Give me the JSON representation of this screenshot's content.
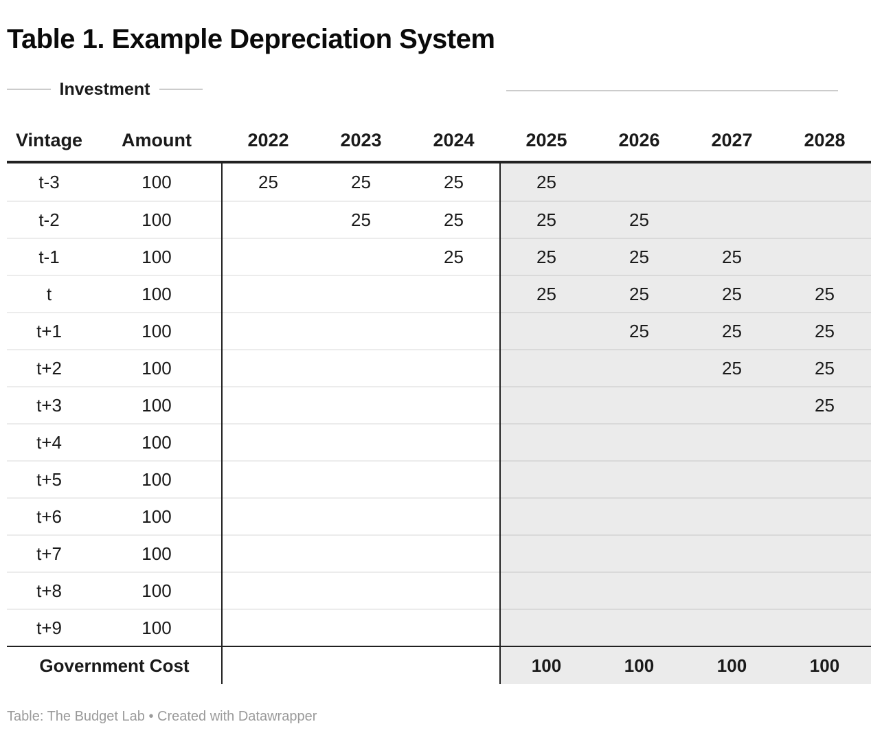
{
  "title": "Table 1. Example Depreciation System",
  "attribution": "Table: The Budget Lab • Created with Datawrapper",
  "colors": {
    "highlight_column_bg": "#ebebeb",
    "rule_dark": "#212121",
    "separator_plain": "#ececec",
    "separator_shaded": "#d9d9d9",
    "group_line": "#cccccc",
    "attribution_text": "#9a9a9a"
  },
  "chart_data": {
    "type": "table",
    "title": "Table 1. Example Depreciation System",
    "group_header": {
      "label": "Investment",
      "spans_columns": [
        "Vintage",
        "Amount"
      ]
    },
    "columns": [
      "Vintage",
      "Amount",
      "2022",
      "2023",
      "2024",
      "2025",
      "2026",
      "2027",
      "2028"
    ],
    "highlighted_columns": [
      "2025",
      "2026",
      "2027",
      "2028"
    ],
    "rows": [
      {
        "vintage": "t-3",
        "amount": "100",
        "deductions": [
          "25",
          "25",
          "25",
          "25",
          "",
          "",
          ""
        ]
      },
      {
        "vintage": "t-2",
        "amount": "100",
        "deductions": [
          "",
          "25",
          "25",
          "25",
          "25",
          "",
          ""
        ]
      },
      {
        "vintage": "t-1",
        "amount": "100",
        "deductions": [
          "",
          "",
          "25",
          "25",
          "25",
          "25",
          ""
        ]
      },
      {
        "vintage": "t",
        "amount": "100",
        "deductions": [
          "",
          "",
          "",
          "25",
          "25",
          "25",
          "25"
        ]
      },
      {
        "vintage": "t+1",
        "amount": "100",
        "deductions": [
          "",
          "",
          "",
          "",
          "25",
          "25",
          "25"
        ]
      },
      {
        "vintage": "t+2",
        "amount": "100",
        "deductions": [
          "",
          "",
          "",
          "",
          "",
          "25",
          "25"
        ]
      },
      {
        "vintage": "t+3",
        "amount": "100",
        "deductions": [
          "",
          "",
          "",
          "",
          "",
          "",
          "25"
        ]
      },
      {
        "vintage": "t+4",
        "amount": "100",
        "deductions": [
          "",
          "",
          "",
          "",
          "",
          "",
          ""
        ]
      },
      {
        "vintage": "t+5",
        "amount": "100",
        "deductions": [
          "",
          "",
          "",
          "",
          "",
          "",
          ""
        ]
      },
      {
        "vintage": "t+6",
        "amount": "100",
        "deductions": [
          "",
          "",
          "",
          "",
          "",
          "",
          ""
        ]
      },
      {
        "vintage": "t+7",
        "amount": "100",
        "deductions": [
          "",
          "",
          "",
          "",
          "",
          "",
          ""
        ]
      },
      {
        "vintage": "t+8",
        "amount": "100",
        "deductions": [
          "",
          "",
          "",
          "",
          "",
          "",
          ""
        ]
      },
      {
        "vintage": "t+9",
        "amount": "100",
        "deductions": [
          "",
          "",
          "",
          "",
          "",
          "",
          ""
        ]
      }
    ],
    "summary_row": {
      "label": "Government Cost",
      "values": [
        "",
        "",
        "",
        "100",
        "100",
        "100",
        "100"
      ]
    },
    "note": "Table: The Budget Lab • Created with Datawrapper"
  }
}
